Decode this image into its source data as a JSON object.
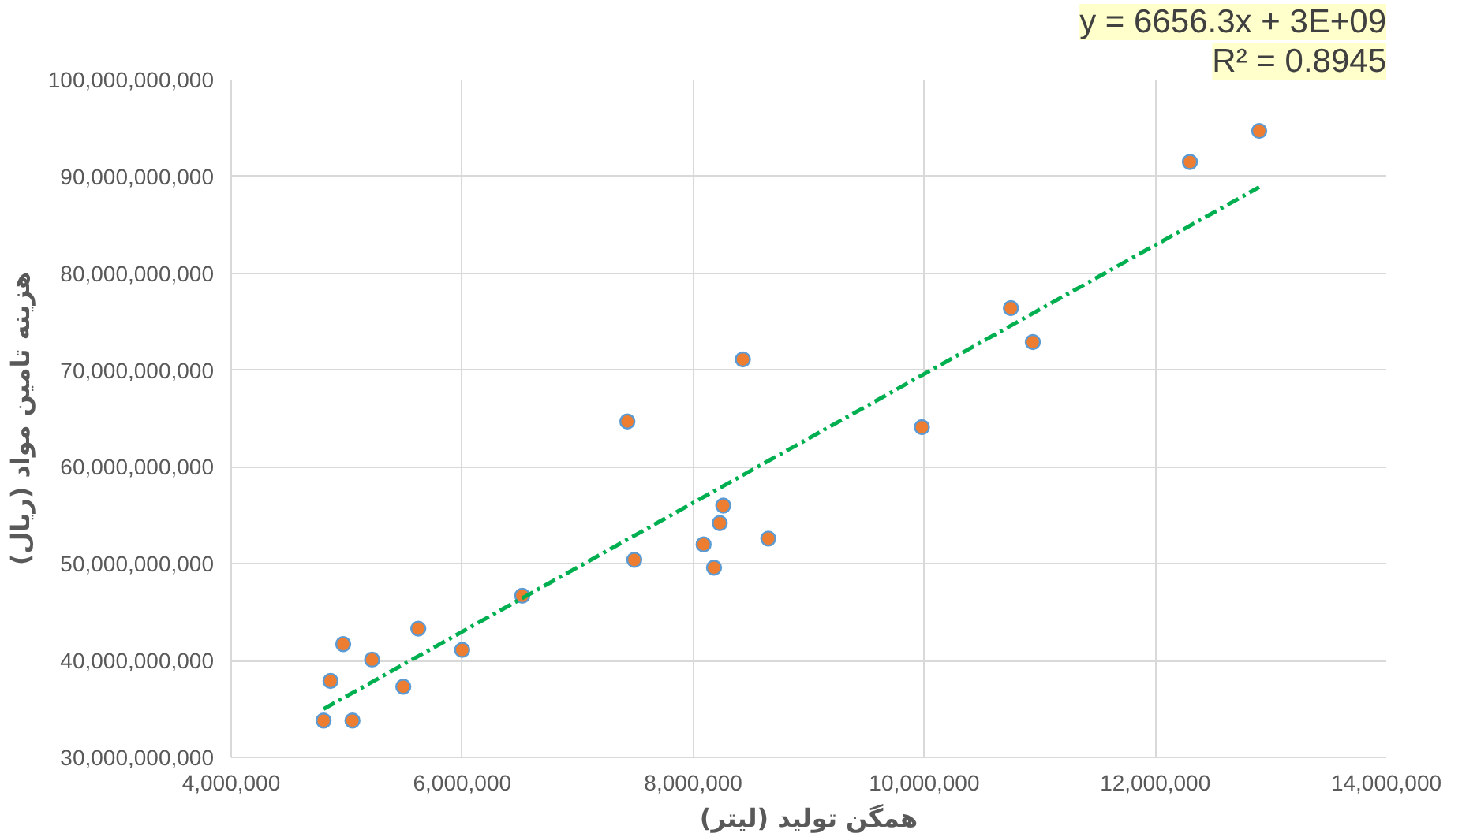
{
  "chart_data": {
    "type": "scatter",
    "xlabel": "همگن تولید (لیتر)",
    "ylabel": "هزینه تامین مواد (ریال)",
    "annotations": [
      "y = 6656.3x + 3E+09",
      "R² = 0.8945"
    ],
    "xlim": [
      4000000,
      14000000
    ],
    "xticks": [
      {
        "value": 4000000,
        "label": "4,000,000"
      },
      {
        "value": 6000000,
        "label": "6,000,000"
      },
      {
        "value": 8000000,
        "label": "8,000,000"
      },
      {
        "value": 10000000,
        "label": "10,000,000"
      },
      {
        "value": 12000000,
        "label": "12,000,000"
      },
      {
        "value": 14000000,
        "label": "14,000,000"
      }
    ],
    "ylim": [
      30000000000,
      100000000000
    ],
    "yticks": [
      {
        "value": 30000000000,
        "label": "30,000,000,000"
      },
      {
        "value": 40000000000,
        "label": "40,000,000,000"
      },
      {
        "value": 50000000000,
        "label": "50,000,000,000"
      },
      {
        "value": 60000000000,
        "label": "60,000,000,000"
      },
      {
        "value": 70000000000,
        "label": "70,000,000,000"
      },
      {
        "value": 80000000000,
        "label": "80,000,000,000"
      },
      {
        "value": 90000000000,
        "label": "90,000,000,000"
      },
      {
        "value": 100000000000,
        "label": "100,000,000,000"
      }
    ],
    "grid": true,
    "marker": "circle",
    "series": [
      {
        "color": "#ed7d31",
        "x": [
          4800000,
          4860000,
          4970000,
          5050000,
          5220000,
          5490000,
          5620000,
          6000000,
          6520000,
          7430000,
          7490000,
          8090000,
          8180000,
          8230000,
          8260000,
          8430000,
          8650000,
          9980000,
          10750000,
          10940000,
          12300000,
          12900000
        ],
        "values": [
          33800000000,
          37900000000,
          41700000000,
          33800000000,
          40100000000,
          37300000000,
          43300000000,
          41100000000,
          46700000000,
          64700000000,
          50400000000,
          52000000000,
          49600000000,
          54200000000,
          56000000000,
          71100000000,
          52600000000,
          64100000000,
          76400000000,
          72900000000,
          91500000000,
          94700000000
        ]
      },
      {
        "type": "line",
        "color": "#00b050",
        "line_style": "dashed",
        "marker": "none",
        "x": [
          4800000,
          12900000
        ],
        "values": [
          35000000000,
          88900000000
        ]
      }
    ]
  }
}
